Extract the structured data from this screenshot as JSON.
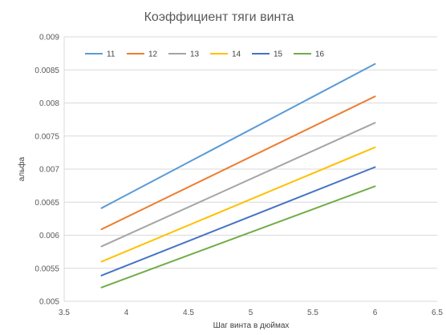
{
  "chart_data": {
    "type": "line",
    "title": "Коэффициент тяги винта",
    "xlabel": "Шаг винта в дюймах",
    "ylabel": "альфа",
    "xlim": [
      3.5,
      6.5
    ],
    "ylim": [
      0.005,
      0.009
    ],
    "x_ticks": [
      "3.5",
      "4",
      "4.5",
      "5",
      "5.5",
      "6",
      "6.5"
    ],
    "y_ticks": [
      "0.005",
      "0.0055",
      "0.006",
      "0.0065",
      "0.007",
      "0.0075",
      "0.008",
      "0.0085",
      "0.009"
    ],
    "grid": "horizontal",
    "legend_position": "top-left-inside",
    "series": [
      {
        "name": "11",
        "color": "#5b9bd5",
        "x": [
          3.8,
          6
        ],
        "y": [
          0.00641,
          0.00859
        ]
      },
      {
        "name": "12",
        "color": "#ed7d31",
        "x": [
          3.8,
          6
        ],
        "y": [
          0.00609,
          0.0081
        ]
      },
      {
        "name": "13",
        "color": "#a5a5a5",
        "x": [
          3.8,
          6
        ],
        "y": [
          0.00583,
          0.0077
        ]
      },
      {
        "name": "14",
        "color": "#ffc000",
        "x": [
          3.8,
          6
        ],
        "y": [
          0.0056,
          0.00733
        ]
      },
      {
        "name": "15",
        "color": "#4472c4",
        "x": [
          3.8,
          6
        ],
        "y": [
          0.00539,
          0.00703
        ]
      },
      {
        "name": "16",
        "color": "#70ad47",
        "x": [
          3.8,
          6
        ],
        "y": [
          0.00521,
          0.00674
        ]
      }
    ]
  }
}
